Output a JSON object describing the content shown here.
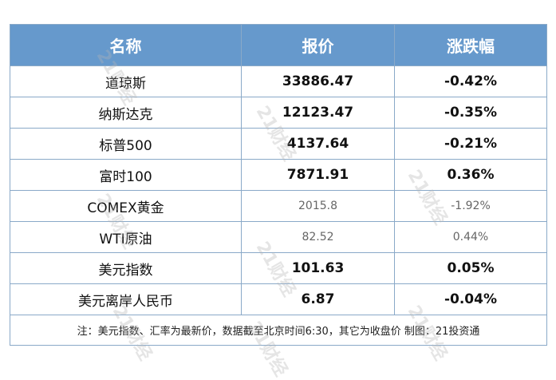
{
  "headers": [
    "名称",
    "报价",
    "涨跌幅"
  ],
  "rows": [
    {
      "name": "道琼斯",
      "price": "33886.47",
      "change": "-0.42%",
      "muted": false
    },
    {
      "name": "纳斯达克",
      "price": "12123.47",
      "change": "-0.35%",
      "muted": false
    },
    {
      "name": "标普500",
      "price": "4137.64",
      "change": "-0.21%",
      "muted": false
    },
    {
      "name": "富时100",
      "price": "7871.91",
      "change": "0.36%",
      "muted": false
    },
    {
      "name": "COMEX黄金",
      "price": "2015.8",
      "change": "-1.92%",
      "muted": true
    },
    {
      "name": "WTI原油",
      "price": "82.52",
      "change": "0.44%",
      "muted": true
    },
    {
      "name": "美元指数",
      "price": "101.63",
      "change": "0.05%",
      "muted": false
    },
    {
      "name": "美元离岸人民币",
      "price": "6.87",
      "change": "-0.04%",
      "muted": false
    }
  ],
  "note": "注：美元指数、汇率为最新价，数据截至北京时间6:30，其它为收盘价 制图：21投资通",
  "watermark": "21财经",
  "colors": {
    "header_bg": "#6699cc",
    "border": "#8aa9c8"
  }
}
